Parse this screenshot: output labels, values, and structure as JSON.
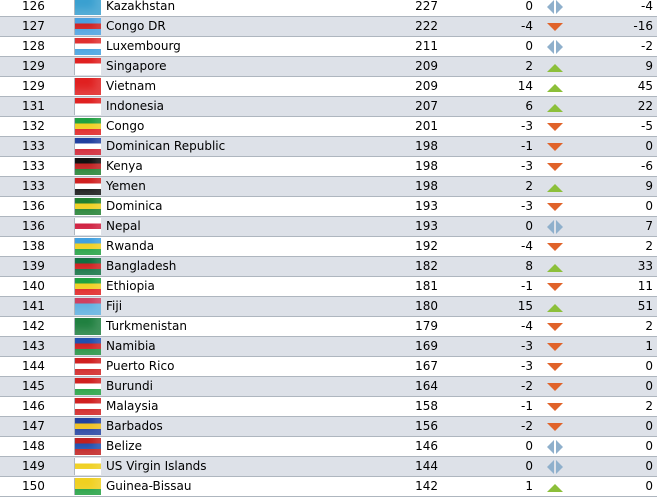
{
  "colors": {
    "up": "#8cbf3a",
    "down": "#e0632a",
    "same": "#8fb0cc",
    "row_alt": "#dde1e8"
  },
  "rows": [
    {
      "rank": "126",
      "country": "Kazakhstan",
      "points": "227",
      "change": "0",
      "trend": "same",
      "total": "-4",
      "flag": [
        "#3aa0d0",
        "#3aa0d0",
        "#3aa0d0"
      ]
    },
    {
      "rank": "127",
      "country": "Congo DR",
      "points": "222",
      "change": "-4",
      "trend": "down",
      "total": "-16",
      "flag": [
        "#4aa0e0",
        "#d02020",
        "#4aa0e0"
      ]
    },
    {
      "rank": "128",
      "country": "Luxembourg",
      "points": "211",
      "change": "0",
      "trend": "same",
      "total": "-2",
      "flag": [
        "#e03030",
        "#ffffff",
        "#40a0e0"
      ]
    },
    {
      "rank": "129",
      "country": "Singapore",
      "points": "209",
      "change": "2",
      "trend": "up",
      "total": "9",
      "flag": [
        "#e02020",
        "#ffffff",
        "#ffffff"
      ]
    },
    {
      "rank": "129",
      "country": "Vietnam",
      "points": "209",
      "change": "14",
      "trend": "up",
      "total": "45",
      "flag": [
        "#e02020",
        "#e02020",
        "#e02020"
      ]
    },
    {
      "rank": "131",
      "country": "Indonesia",
      "points": "207",
      "change": "6",
      "trend": "up",
      "total": "22",
      "flag": [
        "#e02020",
        "#ffffff",
        "#ffffff"
      ]
    },
    {
      "rank": "132",
      "country": "Congo",
      "points": "201",
      "change": "-3",
      "trend": "down",
      "total": "-5",
      "flag": [
        "#20a040",
        "#f0d020",
        "#e02020"
      ]
    },
    {
      "rank": "133",
      "country": "Dominican Republic",
      "points": "198",
      "change": "-1",
      "trend": "down",
      "total": "0",
      "flag": [
        "#2040a0",
        "#ffffff",
        "#d02030"
      ]
    },
    {
      "rank": "133",
      "country": "Kenya",
      "points": "198",
      "change": "-3",
      "trend": "down",
      "total": "-6",
      "flag": [
        "#111111",
        "#c02020",
        "#208030"
      ]
    },
    {
      "rank": "133",
      "country": "Yemen",
      "points": "198",
      "change": "2",
      "trend": "up",
      "total": "9",
      "flag": [
        "#d02020",
        "#ffffff",
        "#111111"
      ]
    },
    {
      "rank": "136",
      "country": "Dominica",
      "points": "193",
      "change": "-3",
      "trend": "down",
      "total": "0",
      "flag": [
        "#208030",
        "#f0d020",
        "#208030"
      ]
    },
    {
      "rank": "136",
      "country": "Nepal",
      "points": "193",
      "change": "0",
      "trend": "same",
      "total": "7",
      "flag": [
        "#ffffff",
        "#d02040",
        "#ffffff"
      ]
    },
    {
      "rank": "138",
      "country": "Rwanda",
      "points": "192",
      "change": "-4",
      "trend": "down",
      "total": "2",
      "flag": [
        "#40a0e0",
        "#f0d020",
        "#20a040"
      ]
    },
    {
      "rank": "139",
      "country": "Bangladesh",
      "points": "182",
      "change": "8",
      "trend": "up",
      "total": "33",
      "flag": [
        "#107040",
        "#d02020",
        "#107040"
      ]
    },
    {
      "rank": "140",
      "country": "Ethiopia",
      "points": "181",
      "change": "-1",
      "trend": "down",
      "total": "11",
      "flag": [
        "#20a040",
        "#f0d020",
        "#e02020"
      ]
    },
    {
      "rank": "141",
      "country": "Fiji",
      "points": "180",
      "change": "15",
      "trend": "up",
      "total": "51",
      "flag": [
        "#d04060",
        "#60b0e0",
        "#60b0e0"
      ]
    },
    {
      "rank": "142",
      "country": "Turkmenistan",
      "points": "179",
      "change": "-4",
      "trend": "down",
      "total": "2",
      "flag": [
        "#208040",
        "#208040",
        "#208040"
      ]
    },
    {
      "rank": "143",
      "country": "Namibia",
      "points": "169",
      "change": "-3",
      "trend": "down",
      "total": "1",
      "flag": [
        "#2050b0",
        "#d02020",
        "#209040"
      ]
    },
    {
      "rank": "144",
      "country": "Puerto Rico",
      "points": "167",
      "change": "-3",
      "trend": "down",
      "total": "0",
      "flag": [
        "#d02020",
        "#ffffff",
        "#d02020"
      ]
    },
    {
      "rank": "145",
      "country": "Burundi",
      "points": "164",
      "change": "-2",
      "trend": "down",
      "total": "0",
      "flag": [
        "#d02020",
        "#ffffff",
        "#20a040"
      ]
    },
    {
      "rank": "146",
      "country": "Malaysia",
      "points": "158",
      "change": "-1",
      "trend": "down",
      "total": "2",
      "flag": [
        "#d02020",
        "#ffffff",
        "#d02020"
      ]
    },
    {
      "rank": "147",
      "country": "Barbados",
      "points": "156",
      "change": "-2",
      "trend": "down",
      "total": "0",
      "flag": [
        "#2040a0",
        "#f0c020",
        "#2040a0"
      ]
    },
    {
      "rank": "148",
      "country": "Belize",
      "points": "146",
      "change": "0",
      "trend": "same",
      "total": "0",
      "flag": [
        "#c02020",
        "#2050b0",
        "#c02020"
      ]
    },
    {
      "rank": "149",
      "country": "US Virgin Islands",
      "points": "144",
      "change": "0",
      "trend": "same",
      "total": "0",
      "flag": [
        "#ffffff",
        "#f0d020",
        "#ffffff"
      ]
    },
    {
      "rank": "150",
      "country": "Guinea-Bissau",
      "points": "142",
      "change": "1",
      "trend": "up",
      "total": "0",
      "flag": [
        "#f0d020",
        "#f0d020",
        "#20a040"
      ]
    }
  ]
}
